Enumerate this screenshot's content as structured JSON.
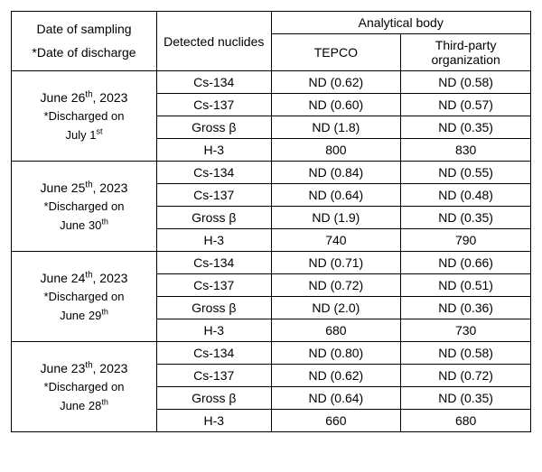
{
  "headers": {
    "sampling_line1": "Date of sampling",
    "sampling_line2": "*Date of discharge",
    "nuclides": "Detected nuclides",
    "analytical_body": "Analytical body",
    "tepco": "TEPCO",
    "third_party_line1": "Third-party",
    "third_party_line2": "organization"
  },
  "groups": [
    {
      "date_main_html": "June 26<sup>th</sup>, 2023",
      "date_sub_html": "*Discharged on<br>July 1<sup>st</sup>",
      "rows": [
        {
          "nuclide": "Cs-134",
          "tepco": "ND (0.62)",
          "third": "ND (0.58)"
        },
        {
          "nuclide": "Cs-137",
          "tepco": "ND (0.60)",
          "third": "ND (0.57)"
        },
        {
          "nuclide": "Gross β",
          "tepco": "ND (1.8)",
          "third": "ND (0.35)"
        },
        {
          "nuclide": "H-3",
          "tepco": "800",
          "third": "830"
        }
      ]
    },
    {
      "date_main_html": "June 25<sup>th</sup>, 2023",
      "date_sub_html": "*Discharged on<br>June 30<sup>th</sup>",
      "rows": [
        {
          "nuclide": "Cs-134",
          "tepco": "ND (0.84)",
          "third": "ND (0.55)"
        },
        {
          "nuclide": "Cs-137",
          "tepco": "ND (0.64)",
          "third": "ND (0.48)"
        },
        {
          "nuclide": "Gross β",
          "tepco": "ND (1.9)",
          "third": "ND (0.35)"
        },
        {
          "nuclide": "H-3",
          "tepco": "740",
          "third": "790"
        }
      ]
    },
    {
      "date_main_html": "June 24<sup>th</sup>, 2023",
      "date_sub_html": "*Discharged on<br>June 29<sup>th</sup>",
      "rows": [
        {
          "nuclide": "Cs-134",
          "tepco": "ND (0.71)",
          "third": "ND (0.66)"
        },
        {
          "nuclide": "Cs-137",
          "tepco": "ND (0.72)",
          "third": "ND (0.51)"
        },
        {
          "nuclide": "Gross β",
          "tepco": "ND (2.0)",
          "third": "ND (0.36)"
        },
        {
          "nuclide": "H-3",
          "tepco": "680",
          "third": "730"
        }
      ]
    },
    {
      "date_main_html": "June 23<sup>th</sup>, 2023",
      "date_sub_html": "*Discharged on<br>June 28<sup>th</sup>",
      "rows": [
        {
          "nuclide": "Cs-134",
          "tepco": "ND (0.80)",
          "third": "ND (0.58)"
        },
        {
          "nuclide": "Cs-137",
          "tepco": "ND (0.62)",
          "third": "ND (0.72)"
        },
        {
          "nuclide": "Gross β",
          "tepco": "ND (0.64)",
          "third": "ND (0.35)"
        },
        {
          "nuclide": "H-3",
          "tepco": "660",
          "third": "680"
        }
      ]
    }
  ]
}
